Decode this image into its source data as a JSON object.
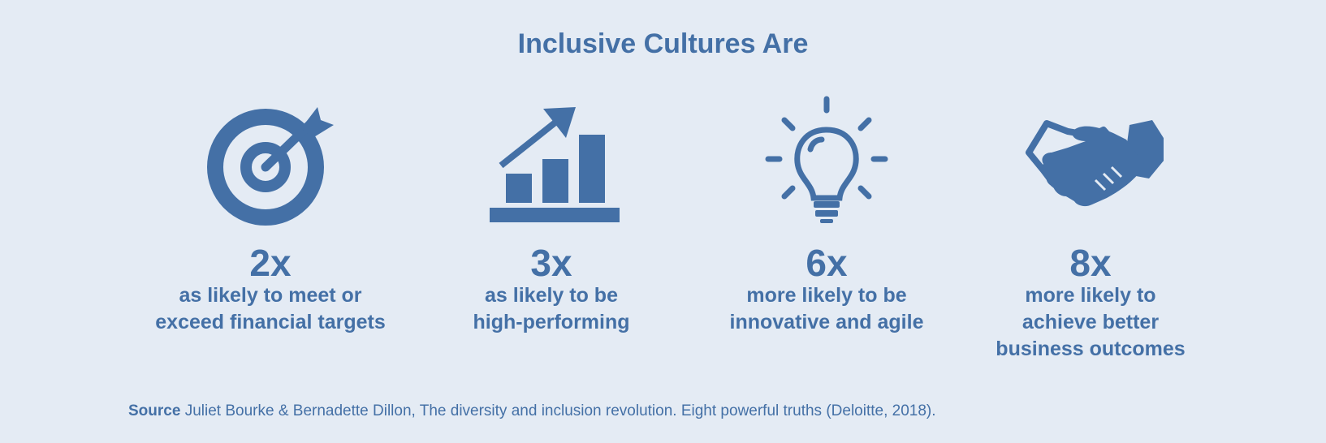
{
  "title": "Inclusive Cultures Are",
  "stats": [
    {
      "icon": "target-icon",
      "multiplier": "2x",
      "description": "as likely to meet or\nexceed financial targets"
    },
    {
      "icon": "growth-chart-icon",
      "multiplier": "3x",
      "description": "as likely to be\nhigh-performing"
    },
    {
      "icon": "lightbulb-icon",
      "multiplier": "6x",
      "description": "more likely to be\ninnovative and agile"
    },
    {
      "icon": "handshake-icon",
      "multiplier": "8x",
      "description": "more likely to\nachieve better\nbusiness outcomes"
    }
  ],
  "source": {
    "label": "Source",
    "text": " Juliet Bourke & Bernadette Dillon, The diversity and inclusion revolution. Eight powerful truths (Deloitte, 2018)."
  },
  "colors": {
    "background": "#e4ebf4",
    "accent": "#4470a6"
  }
}
